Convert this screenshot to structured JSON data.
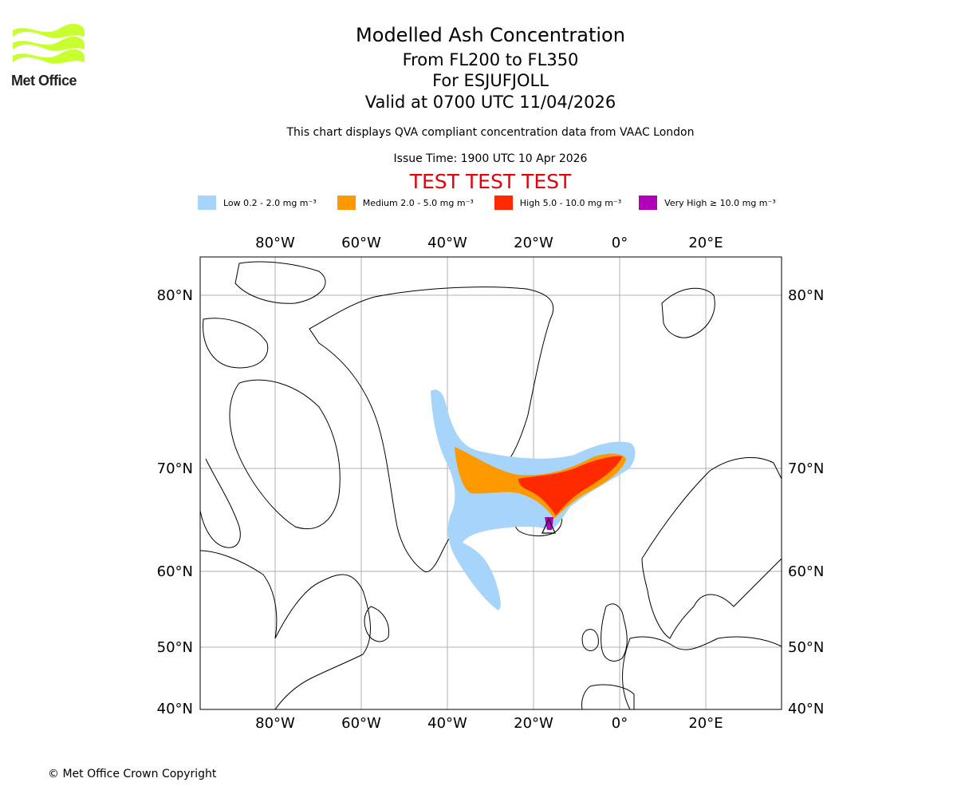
{
  "logo": {
    "text": "Met Office",
    "color": "#c8ff2e"
  },
  "title": {
    "line1": "Modelled Ash Concentration",
    "line2": "From FL200 to FL350",
    "line3": "For ESJUFJOLL",
    "line4": "Valid at 0700 UTC 11/04/2026"
  },
  "subtitle": "This chart displays QVA compliant concentration data from VAAC London",
  "issue_time": "Issue Time: 1900 UTC 10 Apr 2026",
  "test_banner": "TEST TEST TEST",
  "legend": [
    {
      "label": "Low 0.2 - 2.0 mg m⁻³",
      "color": "#a6d4fa"
    },
    {
      "label": "Medium 2.0 - 5.0 mg m⁻³",
      "color": "#ff9900"
    },
    {
      "label": "High 5.0 - 10.0 mg m⁻³",
      "color": "#ff2a00"
    },
    {
      "label": "Very High  ≥  10.0 mg m⁻³",
      "color": "#b000b8"
    }
  ],
  "axes": {
    "lon_ticks": [
      "80°W",
      "60°W",
      "40°W",
      "20°W",
      "0°",
      "20°E"
    ],
    "lat_ticks": [
      "80°N",
      "70°N",
      "60°N",
      "50°N",
      "40°N"
    ]
  },
  "copyright": "© Met Office Crown Copyright"
}
